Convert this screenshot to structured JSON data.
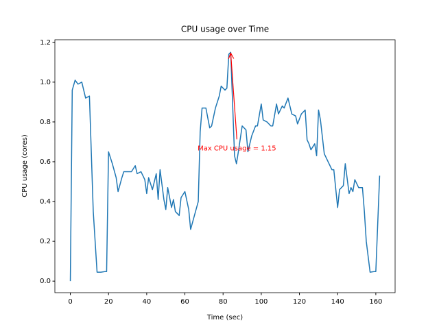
{
  "chart_data": {
    "type": "line",
    "title": "CPU usage over Time",
    "xlabel": "Time (sec)",
    "ylabel": "CPU usage (cores)",
    "x": [
      0,
      1,
      2.5,
      4,
      6,
      8,
      10,
      12,
      14,
      16,
      18,
      19,
      20,
      22,
      24,
      25,
      27,
      28,
      30,
      32,
      34,
      35,
      37,
      39,
      40,
      41,
      43,
      45,
      46,
      47,
      49,
      50,
      51,
      53,
      54,
      55,
      57,
      58,
      60,
      62,
      63,
      65,
      67,
      68,
      69,
      71,
      73,
      74,
      76,
      78,
      79,
      81,
      82,
      83,
      84,
      86,
      87,
      88,
      90,
      92,
      93,
      95,
      97,
      98,
      100,
      101,
      103,
      105,
      106,
      108,
      109,
      111,
      112,
      114,
      116,
      118,
      119,
      121,
      123,
      124,
      125,
      126,
      128,
      129,
      130,
      131,
      133,
      135,
      137,
      138,
      140,
      141,
      143,
      144,
      146,
      147,
      148,
      149,
      151,
      153,
      154,
      155,
      157,
      159,
      160,
      162
    ],
    "series": [
      {
        "name": "CPU usage",
        "color": "#1f77b4",
        "values": [
          0,
          0.96,
          1.01,
          0.99,
          1.0,
          0.92,
          0.93,
          0.35,
          0.045,
          0.045,
          0.048,
          0.048,
          0.65,
          0.59,
          0.52,
          0.45,
          0.52,
          0.55,
          0.55,
          0.55,
          0.58,
          0.54,
          0.55,
          0.51,
          0.44,
          0.52,
          0.46,
          0.54,
          0.41,
          0.56,
          0.41,
          0.36,
          0.47,
          0.37,
          0.41,
          0.35,
          0.33,
          0.42,
          0.45,
          0.36,
          0.26,
          0.33,
          0.4,
          0.75,
          0.87,
          0.87,
          0.77,
          0.78,
          0.87,
          0.93,
          0.98,
          0.96,
          0.97,
          1.14,
          1.15,
          0.63,
          0.59,
          0.65,
          0.78,
          0.76,
          0.65,
          0.73,
          0.78,
          0.78,
          0.89,
          0.81,
          0.8,
          0.78,
          0.78,
          0.89,
          0.84,
          0.88,
          0.87,
          0.92,
          0.84,
          0.83,
          0.79,
          0.84,
          0.86,
          0.71,
          0.69,
          0.66,
          0.69,
          0.63,
          0.86,
          0.81,
          0.64,
          0.6,
          0.56,
          0.56,
          0.37,
          0.46,
          0.48,
          0.59,
          0.44,
          0.47,
          0.45,
          0.51,
          0.47,
          0.47,
          0.35,
          0.2,
          0.045,
          0.048,
          0.048,
          0.53
        ]
      }
    ],
    "annotation": {
      "text": "Max CPU usage = 1.15",
      "x": 84,
      "y": 1.15,
      "color": "red"
    },
    "xlim": [
      -8.1,
      170.1
    ],
    "xticks": [
      0,
      20,
      40,
      60,
      80,
      100,
      120,
      140,
      160
    ],
    "ylim": [
      -0.058,
      1.213
    ],
    "yticks": [
      {
        "value": 0,
        "label": "0.0"
      },
      {
        "value": 0.2,
        "label": "0.2"
      },
      {
        "value": 0.4,
        "label": "0.4"
      },
      {
        "value": 0.6,
        "label": "0.6"
      },
      {
        "value": 0.8,
        "label": "0.8"
      },
      {
        "value": 1,
        "label": "1.0"
      },
      {
        "value": 1.2,
        "label": "1.2"
      }
    ],
    "grid": false
  }
}
